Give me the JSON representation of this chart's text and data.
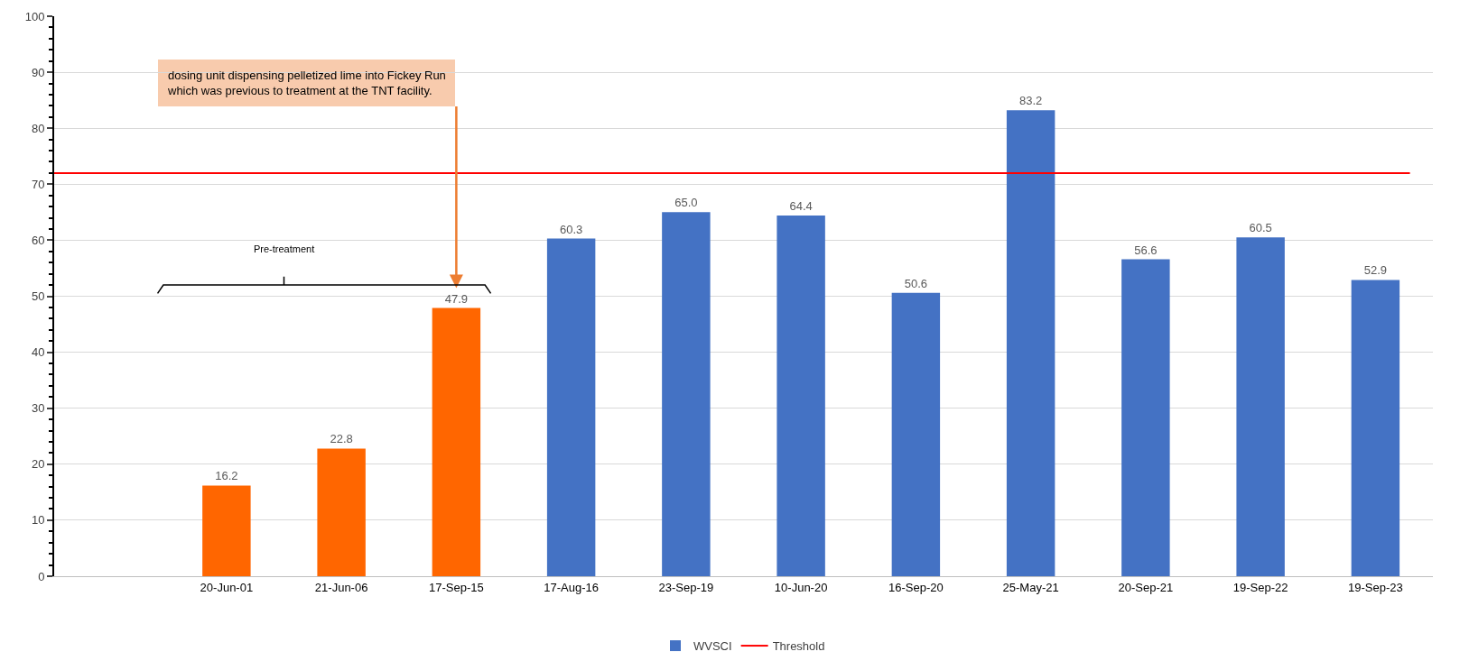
{
  "chart_data": {
    "type": "bar",
    "categories": [
      null,
      "20-Jun-01",
      "21-Jun-06",
      "17-Sep-15",
      "17-Aug-16",
      "23-Sep-19",
      "10-Jun-20",
      "16-Sep-20",
      "25-May-21",
      "20-Sep-21",
      "19-Sep-22",
      "19-Sep-23"
    ],
    "series": [
      {
        "color": "#ff6600",
        "values": [
          null,
          16.2,
          22.8,
          47.9,
          null,
          null,
          null,
          null,
          null,
          null,
          null,
          null
        ],
        "value_labels": [
          null,
          "16.2",
          "22.8",
          "47.9",
          null,
          null,
          null,
          null,
          null,
          null,
          null,
          null
        ]
      },
      {
        "name": "WVSCI",
        "color": "#4472c4",
        "values": [
          null,
          null,
          null,
          null,
          60.3,
          65.0,
          64.4,
          50.6,
          83.2,
          56.6,
          60.5,
          52.9
        ],
        "value_labels": [
          null,
          null,
          null,
          null,
          "60.3",
          "65.0",
          "64.4",
          "50.6",
          "83.2",
          "56.6",
          "60.5",
          "52.9"
        ]
      }
    ],
    "ylim": [
      0,
      100
    ],
    "yticks": [
      0,
      10,
      20,
      30,
      40,
      50,
      60,
      70,
      80,
      90,
      100
    ],
    "ref_lines": [
      {
        "axis": "y",
        "value": 72,
        "label": "Threshold",
        "color": "#ff0000",
        "line_style": "solid"
      }
    ],
    "annotations": [
      {
        "text": "dosing unit dispensing pelletized lime into Fickey Run which was previous to treatment at the TNT facility.",
        "x": "17-Sep-15",
        "y": 47.9
      },
      "Pre-treatment"
    ],
    "grid": "y",
    "legend": "bottom"
  }
}
